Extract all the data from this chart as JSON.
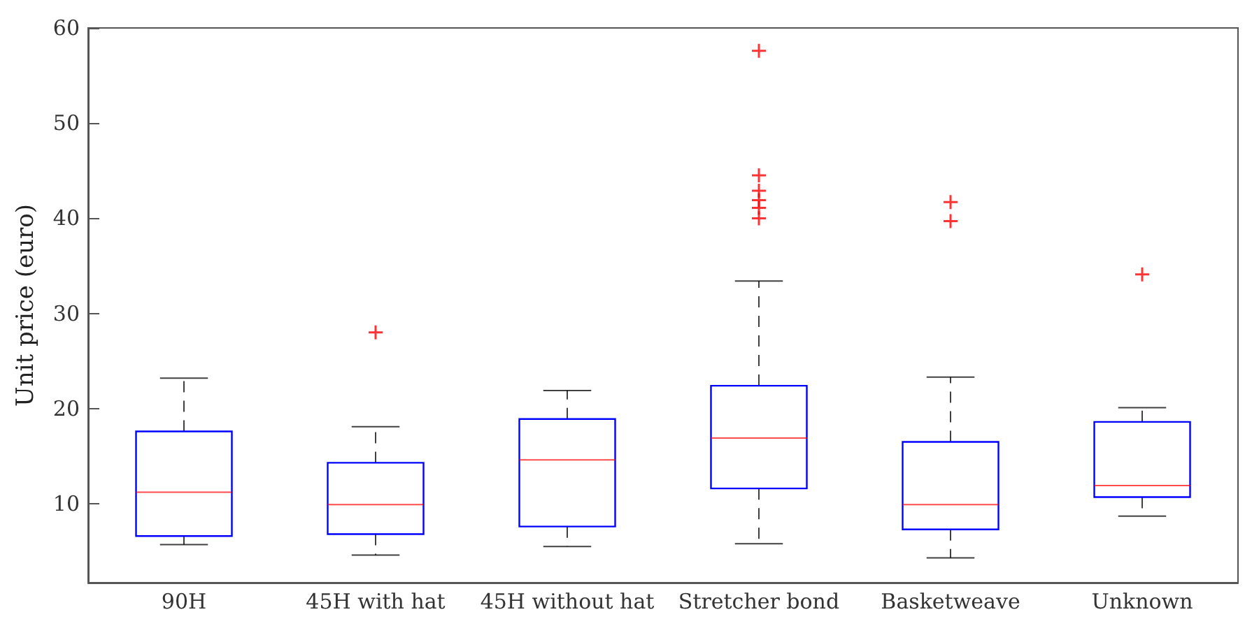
{
  "chart_data": {
    "type": "box",
    "ylabel": "Unit price (euro)",
    "categories": [
      "90H",
      "45H with hat",
      "45H without hat",
      "Stretcher bond",
      "Basketweave",
      "Unknown"
    ],
    "series": [
      {
        "color": "#0000ff",
        "boxes": [
          {
            "low": 5.7,
            "q1": 6.6,
            "median": 11.2,
            "q3": 17.6,
            "high": 23.2
          },
          {
            "low": 4.6,
            "q1": 6.8,
            "median": 9.9,
            "q3": 14.3,
            "high": 18.1,
            "outliers": [
              28.0
            ]
          },
          {
            "low": 5.5,
            "q1": 7.6,
            "median": 14.6,
            "q3": 18.9,
            "high": 21.9
          },
          {
            "low": 5.8,
            "q1": 11.6,
            "median": 16.9,
            "q3": 22.4,
            "high": 33.4,
            "outliers": [
              57.6,
              44.5,
              42.9,
              41.9,
              41.1,
              40.0
            ]
          },
          {
            "low": 4.3,
            "q1": 7.3,
            "median": 9.9,
            "q3": 16.5,
            "high": 23.3,
            "outliers": [
              41.7,
              39.7
            ]
          },
          {
            "low": 8.7,
            "q1": 10.7,
            "median": 11.9,
            "q3": 18.6,
            "high": 20.1,
            "outliers": [
              34.1
            ]
          }
        ]
      }
    ],
    "ylim": [
      1.7,
      60
    ],
    "yticks": [
      10,
      20,
      30,
      40,
      50,
      60
    ],
    "marker": "cross",
    "grid": false
  }
}
